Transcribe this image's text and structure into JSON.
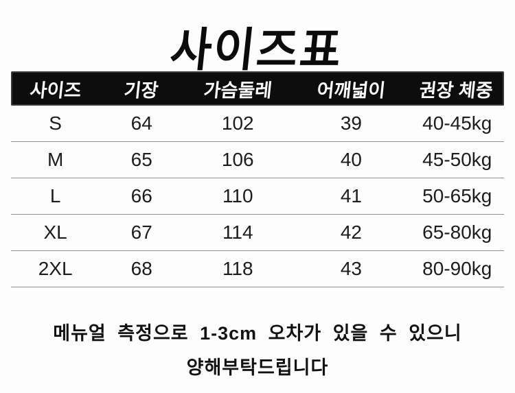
{
  "title": "사이즈표",
  "table": {
    "headers": [
      "사이즈",
      "기장",
      "가슴둘레",
      "어깨넓이",
      "권장 체중"
    ],
    "rows": [
      [
        "S",
        "64",
        "102",
        "39",
        "40-45kg"
      ],
      [
        "M",
        "65",
        "106",
        "40",
        "45-50kg"
      ],
      [
        "L",
        "66",
        "110",
        "41",
        "50-65kg"
      ],
      [
        "XL",
        "67",
        "114",
        "42",
        "65-80kg"
      ],
      [
        "2XL",
        "68",
        "118",
        "43",
        "80-90kg"
      ]
    ]
  },
  "footer": {
    "line1": "메뉴얼 측정으로 1-3cm 오차가 있을 수 있으니",
    "line2": "양해부탁드립니다"
  },
  "colors": {
    "background": "#fdfdfd",
    "header_bg": "#0d0d0d",
    "header_text": "#ffffff",
    "divider": "#8f8f8f",
    "body_text": "#1c1c1c"
  }
}
